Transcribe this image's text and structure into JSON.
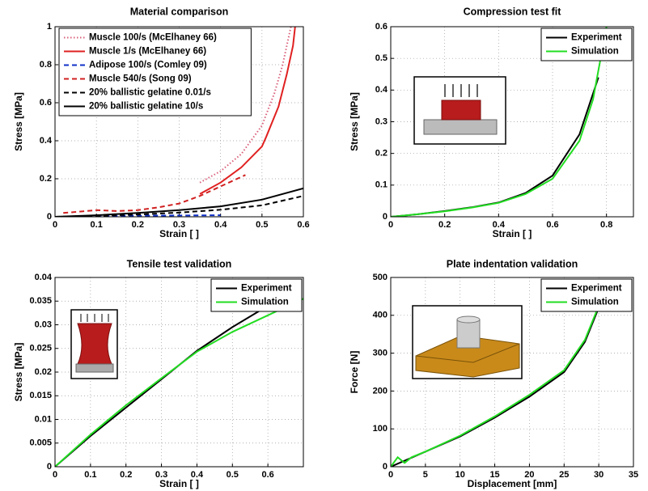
{
  "chart_data": [
    {
      "type": "line",
      "title": "Material comparison",
      "xlabel": "Strain [ ]",
      "ylabel": "Stress [MPa]",
      "xlim": [
        0,
        0.6
      ],
      "xticks": [
        0,
        0.1,
        0.2,
        0.3,
        0.4,
        0.5,
        0.6
      ],
      "ylim": [
        0,
        1
      ],
      "yticks": [
        0,
        0.2,
        0.4,
        0.6,
        0.8,
        1
      ],
      "grid": true,
      "legend": "upper left",
      "series": [
        {
          "name": "Muscle 100/s (McElhaney 66)",
          "color": "#d9607a",
          "linestyle": "dotted",
          "x": [
            0.35,
            0.4,
            0.45,
            0.5,
            0.53,
            0.55,
            0.57
          ],
          "values": [
            0.18,
            0.24,
            0.33,
            0.48,
            0.65,
            0.8,
            1
          ]
        },
        {
          "name": "Muscle 1/s (McElhaney 66)",
          "color": "#e02020",
          "linestyle": "solid",
          "x": [
            0.35,
            0.4,
            0.45,
            0.5,
            0.51,
            0.54,
            0.56,
            0.575,
            0.58
          ],
          "values": [
            0.12,
            0.18,
            0.26,
            0.37,
            0.42,
            0.58,
            0.75,
            0.9,
            1
          ]
        },
        {
          "name": "Adipose 100/s (Comley 09)",
          "color": "#1030c8",
          "linestyle": "dashed",
          "x": [
            0.1,
            0.2,
            0.3,
            0.4
          ],
          "values": [
            0.005,
            0.006,
            0.007,
            0.008
          ]
        },
        {
          "name": "Muscle 540/s (Song 09)",
          "color": "#d02020",
          "linestyle": "dashed",
          "x": [
            0.02,
            0.1,
            0.15,
            0.2,
            0.25,
            0.3,
            0.35,
            0.4,
            0.46
          ],
          "values": [
            0.02,
            0.035,
            0.03,
            0.035,
            0.05,
            0.07,
            0.11,
            0.16,
            0.22
          ]
        },
        {
          "name": "20% ballistic gelatine 0.01/s",
          "color": "#000000",
          "linestyle": "dashed",
          "x": [
            0,
            0.1,
            0.2,
            0.3,
            0.4,
            0.5,
            0.6
          ],
          "values": [
            0,
            0.005,
            0.012,
            0.022,
            0.037,
            0.06,
            0.11
          ]
        },
        {
          "name": "20% ballistic gelatine 10/s",
          "color": "#000000",
          "linestyle": "solid",
          "x": [
            0,
            0.1,
            0.2,
            0.3,
            0.4,
            0.5,
            0.6
          ],
          "values": [
            0,
            0.008,
            0.02,
            0.035,
            0.055,
            0.09,
            0.15
          ]
        }
      ]
    },
    {
      "type": "line",
      "title": "Compression test fit",
      "xlabel": "Strain [ ]",
      "ylabel": "Stress [MPa]",
      "xlim": [
        0,
        0.9
      ],
      "xticks": [
        0,
        0.2,
        0.4,
        0.6,
        0.8
      ],
      "ylim": [
        0,
        0.6
      ],
      "yticks": [
        0,
        0.1,
        0.2,
        0.3,
        0.4,
        0.5,
        0.6
      ],
      "grid": true,
      "legend": "upper right",
      "series": [
        {
          "name": "Experiment",
          "color": "#000000",
          "linestyle": "solid",
          "x": [
            0,
            0.1,
            0.2,
            0.3,
            0.4,
            0.5,
            0.6,
            0.7,
            0.77
          ],
          "values": [
            0,
            0.008,
            0.018,
            0.03,
            0.045,
            0.075,
            0.13,
            0.26,
            0.44
          ]
        },
        {
          "name": "Simulation",
          "color": "#22dd22",
          "linestyle": "solid",
          "x": [
            0,
            0.1,
            0.2,
            0.3,
            0.4,
            0.5,
            0.6,
            0.7,
            0.75,
            0.8
          ],
          "values": [
            0,
            0.008,
            0.017,
            0.029,
            0.044,
            0.072,
            0.12,
            0.24,
            0.37,
            0.6
          ]
        }
      ]
    },
    {
      "type": "line",
      "title": "Tensile test validation",
      "xlabel": "Strain [ ]",
      "ylabel": "Stress [MPa]",
      "xlim": [
        0,
        0.7
      ],
      "xticks": [
        0,
        0.1,
        0.2,
        0.3,
        0.4,
        0.5,
        0.6
      ],
      "ylim": [
        0,
        0.04
      ],
      "yticks": [
        0,
        0.005,
        0.01,
        0.015,
        0.02,
        0.025,
        0.03,
        0.035,
        0.04
      ],
      "grid": true,
      "legend": "upper right",
      "series": [
        {
          "name": "Experiment",
          "color": "#000000",
          "linestyle": "solid",
          "x": [
            0,
            0.1,
            0.2,
            0.3,
            0.4,
            0.5,
            0.6,
            0.65
          ],
          "values": [
            0,
            0.0065,
            0.0125,
            0.0185,
            0.0245,
            0.0295,
            0.034,
            0.036
          ]
        },
        {
          "name": "Simulation",
          "color": "#22dd22",
          "linestyle": "solid",
          "x": [
            0,
            0.1,
            0.2,
            0.3,
            0.4,
            0.5,
            0.6,
            0.7
          ],
          "values": [
            0,
            0.0068,
            0.013,
            0.0187,
            0.0243,
            0.0285,
            0.032,
            0.0355
          ]
        }
      ]
    },
    {
      "type": "line",
      "title": "Plate indentation validation",
      "xlabel": "Displacement [mm]",
      "ylabel": "Force [N]",
      "xlim": [
        0,
        35
      ],
      "xticks": [
        0,
        5,
        10,
        15,
        20,
        25,
        30,
        35
      ],
      "ylim": [
        0,
        500
      ],
      "yticks": [
        0,
        100,
        200,
        300,
        400,
        500
      ],
      "grid": true,
      "legend": "upper right",
      "series": [
        {
          "name": "Experiment",
          "color": "#000000",
          "linestyle": "solid",
          "x": [
            0,
            5,
            10,
            15,
            20,
            25,
            28,
            30
          ],
          "values": [
            0,
            40,
            80,
            130,
            185,
            250,
            330,
            420
          ]
        },
        {
          "name": "Simulation",
          "color": "#22dd22",
          "linestyle": "solid",
          "x": [
            0,
            1,
            2,
            3,
            5,
            10,
            15,
            20,
            25,
            28,
            30
          ],
          "values": [
            0,
            25,
            10,
            25,
            40,
            82,
            133,
            190,
            255,
            335,
            425
          ]
        }
      ]
    }
  ]
}
